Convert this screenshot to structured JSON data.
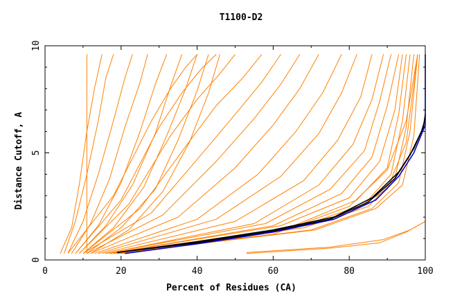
{
  "chart_data": {
    "type": "line",
    "title": "T1100-D2",
    "xlabel": "Percent of Residues (CA)",
    "ylabel": "Distance Cutoff, A",
    "xlim": [
      0,
      100
    ],
    "ylim": [
      0,
      10
    ],
    "xticks": [
      "0",
      "20",
      "40",
      "60",
      "80",
      "100"
    ],
    "yticks": [
      "0",
      "5",
      "10"
    ],
    "grid": false,
    "legend": "none",
    "colors": {
      "orange": "#ff8000",
      "black": "#000000",
      "blue": "#0000cc"
    },
    "series": [
      {
        "color": "#ff8000",
        "x": [
          11,
          11,
          11,
          11,
          11
        ],
        "y": [
          0.3,
          3,
          6,
          8,
          9.6
        ]
      },
      {
        "color": "#ff8000",
        "x": [
          4,
          7,
          9,
          11,
          13,
          15
        ],
        "y": [
          0.3,
          1.5,
          3.5,
          6,
          8,
          9.6
        ]
      },
      {
        "color": "#ff8000",
        "x": [
          5,
          8,
          11,
          14,
          16,
          18
        ],
        "y": [
          0.3,
          1.8,
          4,
          6.5,
          8.5,
          9.6
        ]
      },
      {
        "color": "#ff8000",
        "x": [
          6,
          10,
          14,
          18,
          21,
          23
        ],
        "y": [
          0.3,
          1.8,
          4,
          6.5,
          8.5,
          9.6
        ]
      },
      {
        "color": "#ff8000",
        "x": [
          7,
          12,
          17,
          21,
          25,
          27
        ],
        "y": [
          0.3,
          1.7,
          3.8,
          6.2,
          8.3,
          9.6
        ]
      },
      {
        "color": "#ff8000",
        "x": [
          8,
          14,
          20,
          25,
          29,
          32
        ],
        "y": [
          0.3,
          1.6,
          3.6,
          6,
          8.2,
          9.6
        ]
      },
      {
        "color": "#ff8000",
        "x": [
          9,
          16,
          23,
          29,
          33,
          36
        ],
        "y": [
          0.3,
          1.6,
          3.5,
          5.9,
          8.1,
          9.6
        ]
      },
      {
        "color": "#ff8000",
        "x": [
          10,
          18,
          26,
          32,
          37,
          40
        ],
        "y": [
          0.3,
          1.5,
          3.4,
          5.8,
          8,
          9.6
        ]
      },
      {
        "color": "#ff8000",
        "x": [
          11,
          20,
          29,
          35,
          40,
          43
        ],
        "y": [
          0.3,
          1.5,
          3.3,
          5.6,
          7.9,
          9.6
        ]
      },
      {
        "color": "#ff8000",
        "x": [
          12,
          22,
          31,
          38,
          43,
          46
        ],
        "y": [
          0.3,
          1.4,
          3.2,
          5.5,
          7.8,
          9.6
        ]
      },
      {
        "color": "#ff8000",
        "x": [
          6,
          18,
          28,
          33,
          37,
          40
        ],
        "y": [
          0.3,
          3,
          6.5,
          8,
          9,
          9.6
        ]
      },
      {
        "color": "#ff8000",
        "x": [
          8,
          20,
          30,
          36,
          41,
          45
        ],
        "y": [
          0.3,
          2.8,
          6.2,
          7.8,
          8.9,
          9.6
        ]
      },
      {
        "color": "#ff8000",
        "x": [
          9,
          22,
          33,
          40,
          46,
          50
        ],
        "y": [
          0.3,
          2.6,
          5.8,
          7.5,
          8.7,
          9.6
        ]
      },
      {
        "color": "#ff8000",
        "x": [
          10,
          25,
          37,
          45,
          52,
          57
        ],
        "y": [
          0.3,
          2.4,
          5.3,
          7.2,
          8.5,
          9.6
        ]
      },
      {
        "color": "#ff8000",
        "x": [
          10,
          28,
          41,
          50,
          57,
          62
        ],
        "y": [
          0.3,
          2.2,
          4.9,
          6.8,
          8.3,
          9.6
        ]
      },
      {
        "color": "#ff8000",
        "x": [
          11,
          31,
          45,
          55,
          62,
          67
        ],
        "y": [
          0.3,
          2.1,
          4.6,
          6.6,
          8.2,
          9.6
        ]
      },
      {
        "color": "#ff8000",
        "x": [
          12,
          35,
          50,
          60,
          67,
          72
        ],
        "y": [
          0.3,
          2,
          4.3,
          6.3,
          8,
          9.6
        ]
      },
      {
        "color": "#ff8000",
        "x": [
          13,
          40,
          56,
          66,
          73,
          78
        ],
        "y": [
          0.3,
          1.9,
          4,
          6,
          7.8,
          9.6
        ]
      },
      {
        "color": "#ff8000",
        "x": [
          14,
          45,
          62,
          72,
          78,
          82
        ],
        "y": [
          0.3,
          1.9,
          3.9,
          5.9,
          7.8,
          9.6
        ]
      },
      {
        "color": "#ff8000",
        "x": [
          15,
          50,
          68,
          77,
          83,
          86
        ],
        "y": [
          0.3,
          1.8,
          3.7,
          5.6,
          7.6,
          9.6
        ]
      },
      {
        "color": "#ff8000",
        "x": [
          16,
          55,
          72,
          81,
          86,
          89
        ],
        "y": [
          0.3,
          1.7,
          3.5,
          5.4,
          7.5,
          9.6
        ]
      },
      {
        "color": "#ff8000",
        "x": [
          16,
          58,
          75,
          84,
          88,
          91
        ],
        "y": [
          0.3,
          1.7,
          3.3,
          5.1,
          7.4,
          9.6
        ]
      },
      {
        "color": "#ff8000",
        "x": [
          17,
          60,
          78,
          86,
          90,
          93
        ],
        "y": [
          0.3,
          1.6,
          3.1,
          4.8,
          7.2,
          9.6
        ]
      },
      {
        "color": "#ff8000",
        "x": [
          17,
          62,
          80,
          88,
          92,
          94
        ],
        "y": [
          0.3,
          1.6,
          2.9,
          4.6,
          7,
          9.6
        ]
      },
      {
        "color": "#ff8000",
        "x": [
          18,
          64,
          82,
          90,
          93,
          95
        ],
        "y": [
          0.3,
          1.5,
          2.8,
          4.3,
          6.8,
          9.6
        ]
      },
      {
        "color": "#ff8000",
        "x": [
          18,
          66,
          84,
          91,
          94,
          96
        ],
        "y": [
          0.3,
          1.5,
          2.6,
          4,
          6.5,
          9.6
        ]
      },
      {
        "color": "#ff8000",
        "x": [
          19,
          68,
          85,
          92,
          95,
          97
        ],
        "y": [
          0.3,
          1.5,
          2.5,
          3.8,
          6.2,
          9.6
        ]
      },
      {
        "color": "#ff8000",
        "x": [
          19,
          70,
          86,
          93,
          96,
          98
        ],
        "y": [
          0.3,
          1.4,
          2.4,
          3.6,
          6,
          9.6
        ]
      },
      {
        "color": "#ff8000",
        "x": [
          19,
          71,
          87,
          94,
          97,
          98.5
        ],
        "y": [
          0.3,
          1.4,
          2.4,
          3.5,
          5.8,
          9.6
        ]
      },
      {
        "color": "#ff8000",
        "x": [
          18,
          60,
          80,
          90,
          95,
          98
        ],
        "y": [
          0.3,
          1.2,
          2.5,
          4.2,
          6.5,
          9.6
        ]
      },
      {
        "color": "#ff8000",
        "x": [
          20,
          60,
          80,
          90,
          95,
          98
        ],
        "y": [
          0.3,
          1.3,
          2.2,
          3.3,
          5.5,
          9.6
        ]
      },
      {
        "color": "#ff8000",
        "x": [
          53,
          75,
          88,
          95,
          100,
          100
        ],
        "y": [
          0.3,
          0.55,
          0.8,
          1.3,
          1.8,
          9.6
        ]
      },
      {
        "color": "#ff8000",
        "x": [
          53,
          75,
          89,
          96,
          100
        ],
        "y": [
          0.35,
          0.6,
          0.95,
          1.4,
          1.8
        ]
      },
      {
        "color": "#000000",
        "x": [
          19,
          40,
          60,
          75,
          85,
          92,
          96,
          99,
          100
        ],
        "y": [
          0.35,
          0.8,
          1.35,
          1.9,
          2.7,
          3.8,
          4.9,
          6,
          6.6
        ]
      },
      {
        "color": "#000000",
        "x": [
          19,
          40,
          60,
          76,
          86,
          93,
          97,
          99.5,
          100
        ],
        "y": [
          0.35,
          0.85,
          1.4,
          2.0,
          2.9,
          4.1,
          5.2,
          6.2,
          6.8
        ]
      },
      {
        "color": "#0000cc",
        "x": [
          21,
          40,
          60,
          76,
          87,
          93,
          97,
          100,
          100
        ],
        "y": [
          0.3,
          0.75,
          1.3,
          1.9,
          2.8,
          3.9,
          5.0,
          6.3,
          9.6
        ]
      }
    ]
  }
}
